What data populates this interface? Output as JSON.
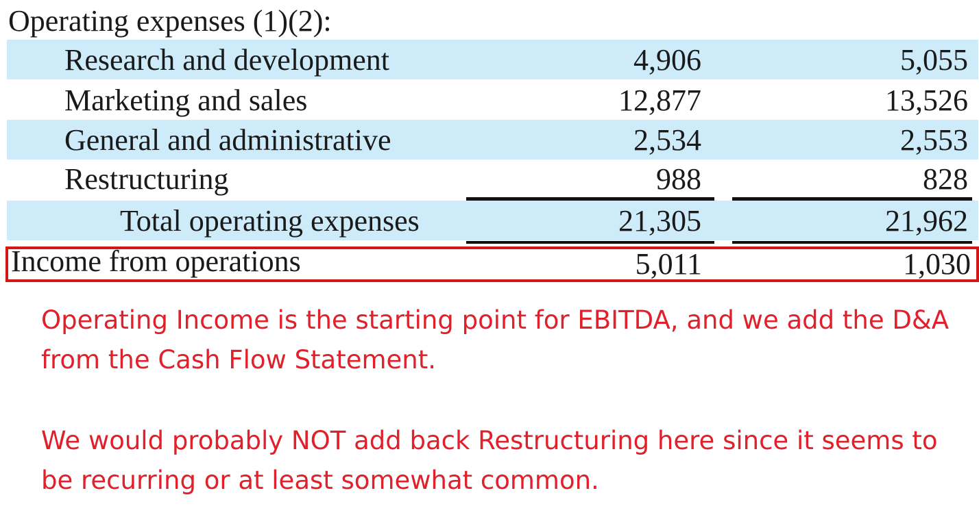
{
  "heading": "Operating expenses (1)(2):",
  "rows": [
    {
      "label": "Research and development",
      "value_1": "4,906",
      "value_2": "5,055"
    },
    {
      "label": "Marketing and sales",
      "value_1": "12,877",
      "value_2": "13,526"
    },
    {
      "label": "General and administrative",
      "value_1": "2,534",
      "value_2": "2,553"
    },
    {
      "label": "Restructuring",
      "value_1": "988",
      "value_2": "828"
    }
  ],
  "total": {
    "label": "Total operating expenses",
    "value_1": "21,305",
    "value_2": "21,962"
  },
  "income": {
    "label": "Income from operations",
    "value_1": "5,011",
    "value_2": "1,030"
  },
  "colors": {
    "row_shade": "#cdebf9",
    "highlight_box": "#d01818",
    "annotation_text": "#e0202a"
  },
  "notes": [
    "Operating Income is the starting point for EBITDA, and we add the D&A from the Cash Flow Statement.",
    "We would probably NOT add back Restructuring here since it seems to be recurring or at least somewhat common."
  ]
}
